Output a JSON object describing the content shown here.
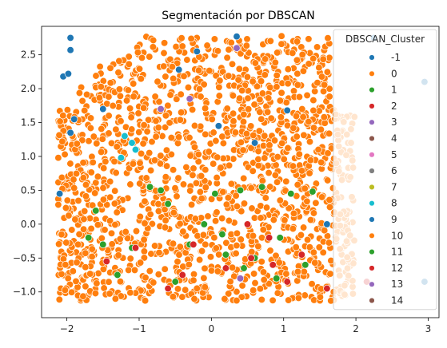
{
  "chart_data": {
    "type": "scatter",
    "title": "Segmentación por DBSCAN",
    "xlabel": "",
    "ylabel": "",
    "xlim": [
      -2.35,
      3.15
    ],
    "ylim": [
      -1.38,
      2.92
    ],
    "xticks": [
      -2,
      -1,
      0,
      1,
      2,
      3
    ],
    "yticks": [
      -1.0,
      -0.5,
      0.0,
      0.5,
      1.0,
      1.5,
      2.0,
      2.5
    ],
    "xtick_labels": [
      "−2",
      "−1",
      "0",
      "1",
      "2",
      "3"
    ],
    "ytick_labels": [
      "−1.0",
      "−0.5",
      "0.0",
      "0.5",
      "1.0",
      "1.5",
      "2.0",
      "2.5"
    ],
    "grid": false,
    "legend": {
      "title": "DBSCAN_Cluster",
      "placement": "top-right",
      "entries": [
        {
          "label": "-1",
          "color": "#1f77b4"
        },
        {
          "label": "0",
          "color": "#ff7f0e"
        },
        {
          "label": "1",
          "color": "#2ca02c"
        },
        {
          "label": "2",
          "color": "#d62728"
        },
        {
          "label": "3",
          "color": "#9467bd"
        },
        {
          "label": "4",
          "color": "#8c564b"
        },
        {
          "label": "5",
          "color": "#e377c2"
        },
        {
          "label": "6",
          "color": "#7f7f7f"
        },
        {
          "label": "7",
          "color": "#bcbd22"
        },
        {
          "label": "8",
          "color": "#17becf"
        },
        {
          "label": "9",
          "color": "#1f77b4"
        },
        {
          "label": "10",
          "color": "#ff7f0e"
        },
        {
          "label": "11",
          "color": "#2ca02c"
        },
        {
          "label": "12",
          "color": "#d62728"
        },
        {
          "label": "13",
          "color": "#9467bd"
        },
        {
          "label": "14",
          "color": "#8c564b"
        }
      ]
    },
    "series": [
      {
        "name": "-1",
        "x": [
          -1.95,
          -1.95,
          -2.05,
          -1.98,
          -1.9,
          -2.1,
          2.95,
          2.95,
          2.25,
          -1.95,
          1.05,
          0.35,
          -0.45,
          -0.2,
          0.1,
          0.6,
          1.6,
          -1.5
        ],
        "y": [
          2.75,
          2.57,
          2.18,
          2.22,
          1.55,
          0.45,
          2.1,
          -0.85,
          2.75,
          1.35,
          1.68,
          2.77,
          2.28,
          2.55,
          1.45,
          1.2,
          0.0,
          1.7
        ]
      },
      {
        "name": "1",
        "x": [
          -1.7,
          -1.6,
          -0.85,
          -0.7,
          -0.1,
          0.05,
          0.4,
          0.7,
          1.1,
          1.4,
          -1.5,
          -1.3,
          -0.3,
          0.2,
          0.6,
          0.9,
          -0.5,
          0.15,
          1.3,
          -1.1,
          -0.6,
          0.45,
          0.95
        ],
        "y": [
          -0.2,
          0.2,
          0.55,
          0.5,
          0.0,
          0.45,
          0.5,
          0.55,
          0.45,
          0.48,
          -0.3,
          -0.75,
          -0.3,
          -0.45,
          -0.5,
          -0.8,
          -0.85,
          -0.15,
          -0.6,
          -0.35,
          0.3,
          -0.65,
          -0.2
        ]
      },
      {
        "name": "2",
        "x": [
          -1.45,
          -1.05,
          -0.6,
          -0.25,
          0.2,
          0.55,
          0.8,
          1.05,
          1.25,
          2.15,
          -0.4,
          0.5,
          0.85,
          1.6
        ],
        "y": [
          -0.55,
          -0.35,
          -0.95,
          -0.3,
          -0.65,
          -0.5,
          -0.2,
          -0.85,
          -0.45,
          -0.85,
          -0.75,
          0.0,
          -0.6,
          -0.95
        ]
      },
      {
        "name": "3",
        "x": [
          -0.3,
          0.35,
          -0.7,
          0.4
        ],
        "y": [
          1.85,
          2.6,
          1.7,
          -0.8
        ]
      },
      {
        "name": "8",
        "x": [
          -1.2,
          -1.1,
          -1.05,
          -1.25
        ],
        "y": [
          1.3,
          1.2,
          1.1,
          0.98
        ]
      }
    ]
  }
}
